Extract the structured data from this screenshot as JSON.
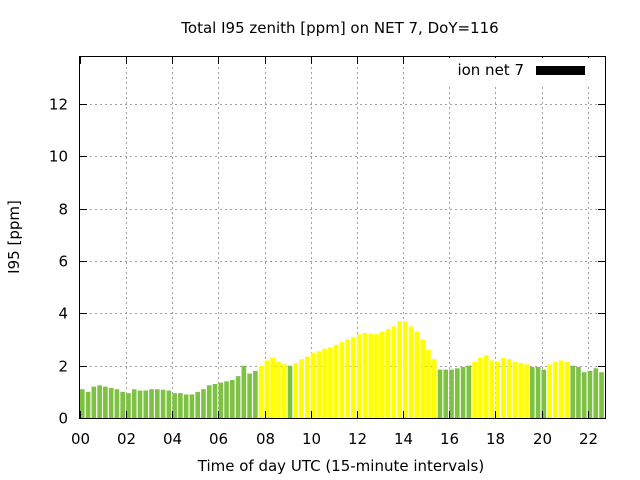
{
  "chart_data": {
    "type": "bar",
    "title": "Total I95 zenith [ppm] on NET 7, DoY=116",
    "xlabel": "Time of day UTC (15-minute intervals)",
    "ylabel": "I95 [ppm]",
    "xlim": [
      0,
      22.75
    ],
    "ylim": [
      0,
      13.8
    ],
    "x_ticks": [
      "00",
      "02",
      "04",
      "06",
      "08",
      "10",
      "12",
      "14",
      "16",
      "18",
      "20",
      "22"
    ],
    "y_ticks": [
      "0",
      "2",
      "4",
      "6",
      "8",
      "10",
      "12"
    ],
    "grid": true,
    "legend": {
      "label": "ion net 7",
      "color": "#000000",
      "position": "top-right"
    },
    "bar_width_hours": 0.2,
    "colors": {
      "low": "#7dc243",
      "high": "#ffff00"
    },
    "series": [
      {
        "start_hour": 0,
        "step_hours": 0.25,
        "values": [
          1.1,
          1.0,
          1.2,
          1.25,
          1.2,
          1.15,
          1.1,
          1.0,
          0.95,
          1.1,
          1.05,
          1.05,
          1.1,
          1.1,
          1.08,
          1.05,
          0.95,
          0.95,
          0.9,
          0.9,
          1.0,
          1.1,
          1.25,
          1.3,
          1.35,
          1.4,
          1.45,
          1.6,
          2.0,
          1.7,
          1.8,
          2.0,
          2.2,
          2.3,
          2.15,
          2.05,
          2.0,
          2.1,
          2.25,
          2.35,
          2.5,
          2.55,
          2.65,
          2.7,
          2.8,
          2.9,
          3.0,
          3.1,
          3.2,
          3.25,
          3.22,
          3.2,
          3.3,
          3.4,
          3.5,
          3.7,
          3.7,
          3.5,
          3.3,
          3.0,
          2.6,
          2.25,
          1.85,
          1.85,
          1.85,
          1.9,
          1.95,
          2.0,
          2.15,
          2.3,
          2.4,
          2.2,
          2.15,
          2.3,
          2.25,
          2.15,
          2.1,
          2.05,
          1.95,
          1.95,
          1.85,
          2.05,
          2.15,
          2.2,
          2.15,
          2.0,
          1.95,
          1.75,
          1.8,
          1.9,
          1.75,
          1.75
        ],
        "levels": [
          "low",
          "low",
          "low",
          "low",
          "low",
          "low",
          "low",
          "low",
          "low",
          "low",
          "low",
          "low",
          "low",
          "low",
          "low",
          "low",
          "low",
          "low",
          "low",
          "low",
          "low",
          "low",
          "low",
          "low",
          "low",
          "low",
          "low",
          "low",
          "low",
          "low",
          "low",
          "high",
          "high",
          "high",
          "high",
          "high",
          "low",
          "high",
          "high",
          "high",
          "high",
          "high",
          "high",
          "high",
          "high",
          "high",
          "high",
          "high",
          "high",
          "high",
          "high",
          "high",
          "high",
          "high",
          "high",
          "high",
          "high",
          "high",
          "high",
          "high",
          "high",
          "high",
          "low",
          "low",
          "low",
          "low",
          "low",
          "low",
          "high",
          "high",
          "high",
          "high",
          "high",
          "high",
          "high",
          "high",
          "high",
          "high",
          "low",
          "low",
          "low",
          "high",
          "high",
          "high",
          "high",
          "low",
          "low",
          "low",
          "low",
          "low",
          "low",
          "low"
        ]
      }
    ]
  }
}
